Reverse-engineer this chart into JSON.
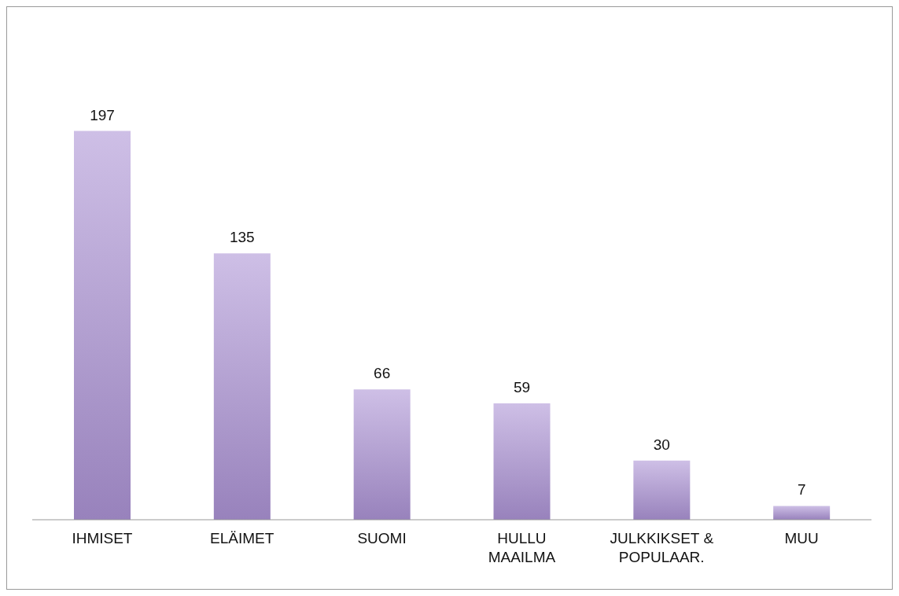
{
  "chart_data": {
    "type": "bar",
    "categories": [
      "IHMISET",
      "ELÄIMET",
      "SUOMI",
      "HULLU MAAILMA",
      "JULKKIKSET & POPULAAR.",
      "MUU"
    ],
    "values": [
      197,
      135,
      66,
      59,
      30,
      7
    ],
    "color": "#ad94d6",
    "data_labels": true,
    "grid": false,
    "legend": false
  }
}
